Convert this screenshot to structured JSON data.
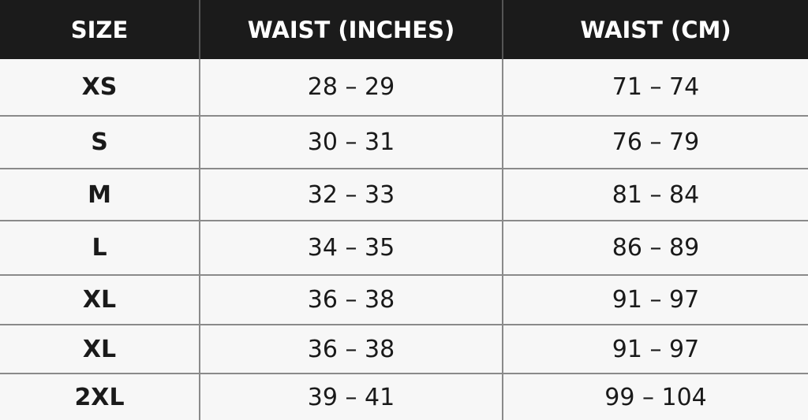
{
  "headers": [
    "SIZE",
    "WAIST (INCHES)",
    "WAIST (CM)"
  ],
  "rows": [
    {
      "size": "XS",
      "inches": "28 – 29",
      "cm": "71 – 74"
    },
    {
      "size": "S",
      "inches": "30 – 31",
      "cm": "76 – 79"
    },
    {
      "size": "M",
      "inches": "32 – 33",
      "cm": "81 – 84"
    },
    {
      "size": "L",
      "inches": "34 – 35",
      "cm": "86 – 89"
    },
    {
      "size": "XL",
      "inches": "36 – 38",
      "cm": "91 – 97"
    },
    {
      "size": "XL",
      "inches": "36 – 38",
      "cm": "91 – 97"
    },
    {
      "size": "2XL",
      "inches": "39 – 41",
      "cm": "99 – 104"
    }
  ]
}
